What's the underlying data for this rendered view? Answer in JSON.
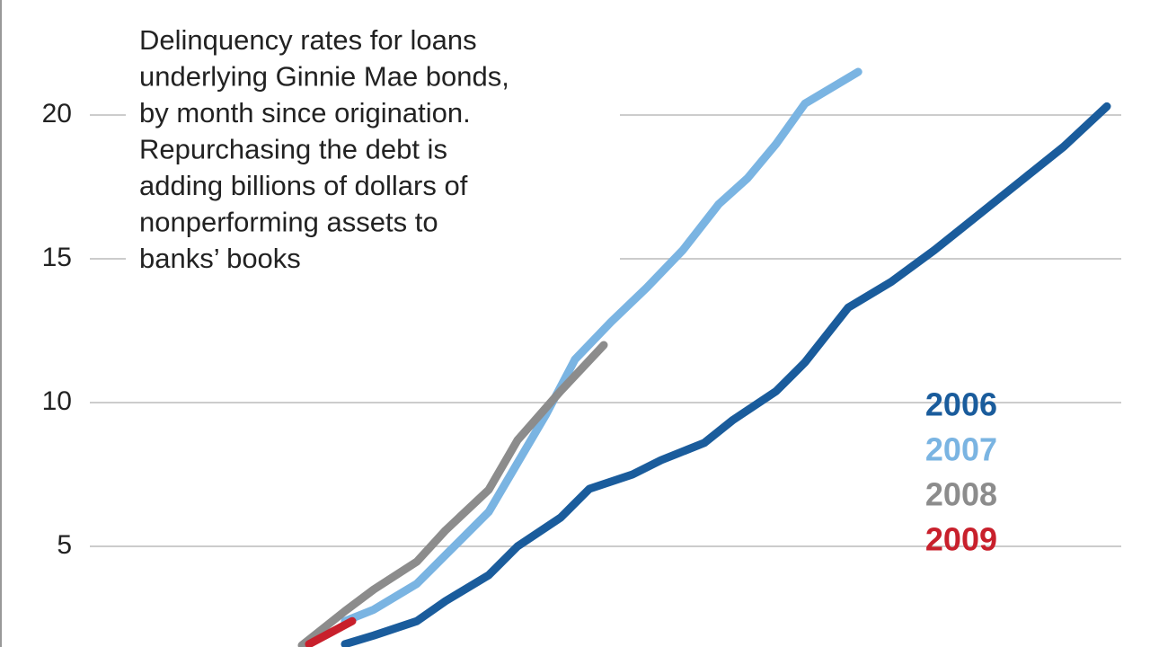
{
  "chart_data": {
    "type": "line",
    "annotation": [
      "Delinquency rates for loans",
      "underlying Ginnie Mae bonds,",
      "by month since origination.",
      "Repurchasing the debt is",
      "adding billions of dollars of",
      "nonperforming assets to",
      "banks’ books"
    ],
    "xlim": [
      0,
      80
    ],
    "ylim": [
      1.5,
      24
    ],
    "yticks": [
      5,
      10,
      15,
      20
    ],
    "grid": true,
    "legend": "right",
    "series": [
      {
        "name": "2006",
        "color": "#1a5c9c",
        "x": [
          24,
          26,
          29,
          31,
          34,
          36,
          39,
          41,
          44,
          46,
          49,
          51,
          54,
          56,
          59,
          62,
          65,
          68,
          71,
          74,
          77
        ],
        "values": [
          1.6,
          1.9,
          2.4,
          3.1,
          4.0,
          5.0,
          6.0,
          7.0,
          7.5,
          8.0,
          8.6,
          9.4,
          10.4,
          11.4,
          13.3,
          14.2,
          15.3,
          16.5,
          17.7,
          18.9,
          20.3
        ]
      },
      {
        "name": "2007",
        "color": "#7ab4e2",
        "x": [
          24,
          26,
          29,
          31,
          34,
          36,
          38,
          40,
          42.5,
          45,
          47.5,
          50,
          52,
          54,
          56,
          59.7
        ],
        "values": [
          2.4,
          2.8,
          3.7,
          4.7,
          6.2,
          7.9,
          9.6,
          11.5,
          12.8,
          14.0,
          15.3,
          16.9,
          17.8,
          19.0,
          20.4,
          21.5
        ]
      },
      {
        "name": "2008",
        "color": "#8c8c8c",
        "x": [
          21,
          24,
          26,
          29,
          31,
          34,
          36,
          39,
          42
        ],
        "values": [
          1.56,
          2.75,
          3.5,
          4.47,
          5.56,
          6.97,
          8.69,
          10.4,
          12.0
        ]
      },
      {
        "name": "2009",
        "color": "#c8202c",
        "x": [
          21.5,
          23,
          24.5
        ],
        "values": [
          1.6,
          2.0,
          2.4
        ]
      }
    ]
  }
}
